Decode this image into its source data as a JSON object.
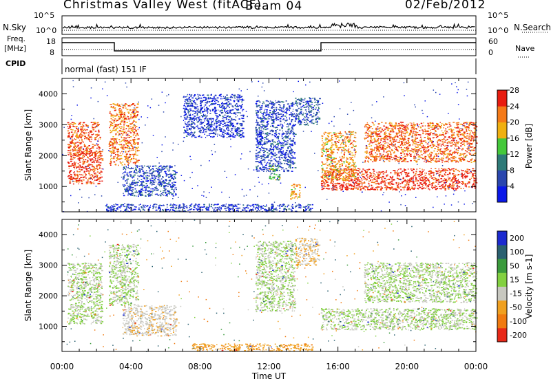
{
  "header": {
    "station": "Christmas Valley West (fitACF)",
    "beam": "Beam 04",
    "date": "02/Feb/2012"
  },
  "top_panels": {
    "noise": {
      "left_label": "N.Sky",
      "left_ticks": [
        "10^5",
        "10^0"
      ],
      "right_ticks": [
        "10^5",
        "10^0"
      ],
      "right_label": "N.Search"
    },
    "freq": {
      "left_label_line1": "Freq.",
      "left_label_line2": "[MHz]",
      "left_ticks": [
        "18",
        "8"
      ],
      "right_ticks": [
        "60",
        "0"
      ],
      "right_label": "Nave"
    },
    "cpid": {
      "label": "CPID",
      "mode_text": "normal (fast)  151 IF"
    }
  },
  "x_axis": {
    "ticks": [
      "00:00",
      "04:00",
      "08:00",
      "12:00",
      "16:00",
      "20:00",
      "00:00"
    ],
    "label": "Time UT"
  },
  "chart_data": [
    {
      "type": "heatmap",
      "quantity": "Power",
      "ylabel": "Slant Range [km]",
      "xlabel": "Time UT",
      "x_range_hours": [
        0,
        24
      ],
      "ylim": [
        180,
        4500
      ],
      "y_ticks": [
        1000,
        2000,
        3000,
        4000
      ],
      "colorbar": {
        "label": "Power [dB]",
        "ticks": [
          4,
          8,
          12,
          16,
          20,
          24,
          28
        ],
        "colors": [
          "#0a18e8",
          "#2a46ae",
          "#2e7a78",
          "#44c83a",
          "#f0b010",
          "#f57a18",
          "#e81c10"
        ]
      },
      "regions": [
        {
          "t": [
            0.3,
            2.2
          ],
          "r": [
            2000,
            3100
          ],
          "level": 26
        },
        {
          "t": [
            0.3,
            2.3
          ],
          "r": [
            1100,
            2200
          ],
          "level": 27
        },
        {
          "t": [
            2.7,
            4.4
          ],
          "r": [
            1700,
            3700
          ],
          "level": 24
        },
        {
          "t": [
            3.5,
            6.6
          ],
          "r": [
            700,
            1700
          ],
          "level": 8
        },
        {
          "t": [
            7.0,
            10.5
          ],
          "r": [
            2600,
            4000
          ],
          "level": 6
        },
        {
          "t": [
            11.2,
            13.5
          ],
          "r": [
            1500,
            3800
          ],
          "level": 7
        },
        {
          "t": [
            12.0,
            12.6
          ],
          "r": [
            1200,
            1700
          ],
          "level": 14
        },
        {
          "t": [
            13.2,
            13.8
          ],
          "r": [
            600,
            1100
          ],
          "level": 21
        },
        {
          "t": [
            13.5,
            14.9
          ],
          "r": [
            3000,
            3900
          ],
          "level": 9
        },
        {
          "t": [
            2.5,
            14.5
          ],
          "r": [
            200,
            450
          ],
          "level": 6
        },
        {
          "t": [
            15.0,
            24.0
          ],
          "r": [
            900,
            1600
          ],
          "level": 28
        },
        {
          "t": [
            15.0,
            17.0
          ],
          "r": [
            1200,
            2800
          ],
          "level": 22
        },
        {
          "t": [
            17.5,
            24.0
          ],
          "r": [
            1800,
            3100
          ],
          "level": 25
        }
      ]
    },
    {
      "type": "heatmap",
      "quantity": "Velocity",
      "ylabel": "Slant Range [km]",
      "xlabel": "Time UT",
      "x_range_hours": [
        0,
        24
      ],
      "ylim": [
        180,
        4500
      ],
      "y_ticks": [
        1000,
        2000,
        3000,
        4000
      ],
      "colorbar": {
        "label": "Velocity [m s-1]",
        "ticks": [
          200,
          100,
          50,
          15,
          -15,
          -50,
          -100,
          -200
        ],
        "colors": [
          "#1c2ad0",
          "#2a6070",
          "#3a9a3c",
          "#82d040",
          "#c8c8c0",
          "#f0a020",
          "#f07a10",
          "#e82818"
        ]
      },
      "regions": [
        {
          "t": [
            0.3,
            2.3
          ],
          "r": [
            1100,
            3100
          ],
          "level": 0
        },
        {
          "t": [
            2.7,
            4.4
          ],
          "r": [
            1700,
            3700
          ],
          "level": 0
        },
        {
          "t": [
            3.5,
            6.6
          ],
          "r": [
            700,
            1700
          ],
          "level": -20
        },
        {
          "t": [
            11.2,
            13.5
          ],
          "r": [
            1500,
            3800
          ],
          "level": 0
        },
        {
          "t": [
            13.5,
            14.9
          ],
          "r": [
            3000,
            3900
          ],
          "level": -30
        },
        {
          "t": [
            7.5,
            14.5
          ],
          "r": [
            200,
            450
          ],
          "level": -60
        },
        {
          "t": [
            15.0,
            24.0
          ],
          "r": [
            900,
            1600
          ],
          "level": 0
        },
        {
          "t": [
            17.5,
            24.0
          ],
          "r": [
            1800,
            3100
          ],
          "level": 0
        }
      ]
    }
  ]
}
